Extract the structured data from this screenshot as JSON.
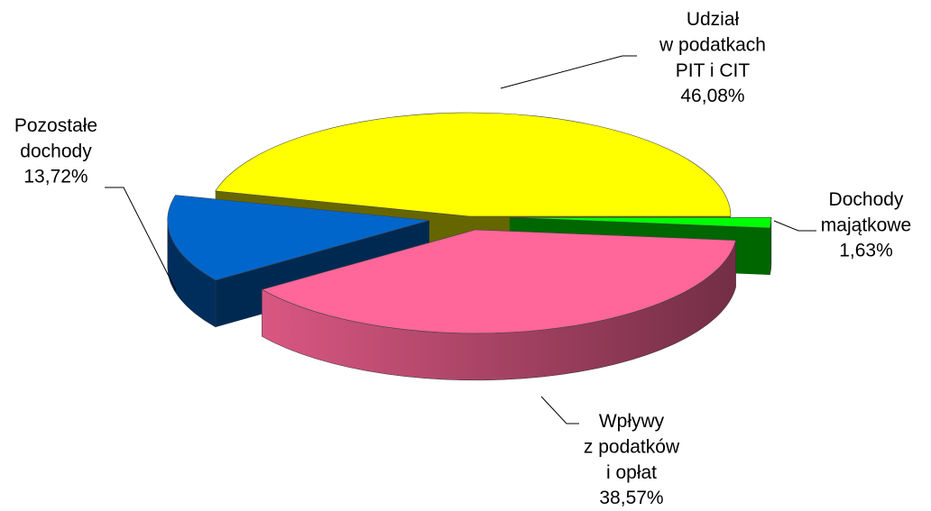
{
  "chart_data": {
    "type": "pie3d",
    "categories": [
      "Dochody\nmajątkowe",
      "Wpływy\nz podatków\ni opłat",
      "Pozostałe\ndochody",
      "Udział\nw podatkach\nPIT i CIT"
    ],
    "values": [
      1.63,
      38.57,
      13.72,
      46.08
    ],
    "value_labels": [
      "1,63%",
      "38,57%",
      "13,72%",
      "46,08%"
    ],
    "colors": [
      "#00ff00",
      "#ff6699",
      "#0066cc",
      "#ffff00"
    ]
  }
}
